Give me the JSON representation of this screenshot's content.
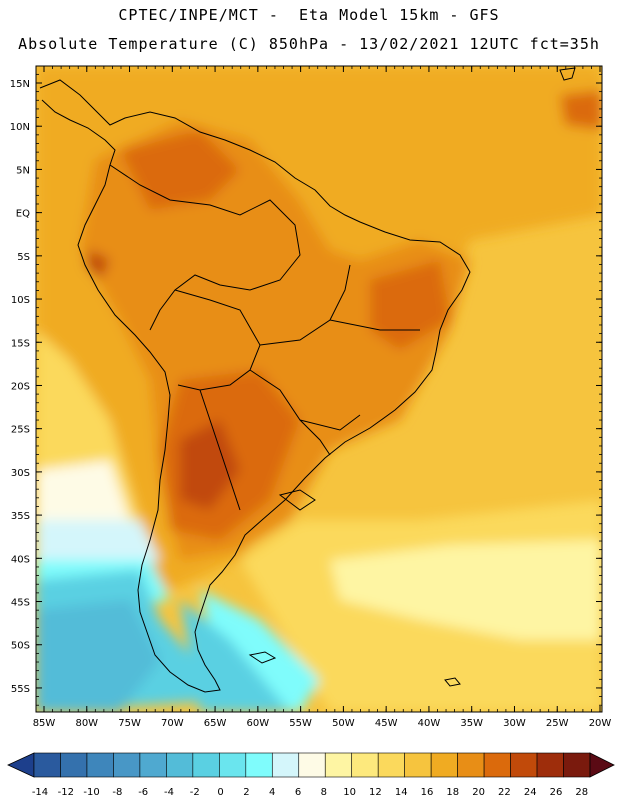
{
  "header": {
    "line1": "CPTEC/INPE/MCT -  Eta Model 15km - GFS",
    "line2": "Absolute Temperature (C) 850hPa - 13/02/2021 12UTC fct=35h"
  },
  "map": {
    "lat_labels": [
      "15N",
      "10N",
      "5N",
      "EQ",
      "5S",
      "10S",
      "15S",
      "20S",
      "25S",
      "30S",
      "35S",
      "40S",
      "45S",
      "50S",
      "55S"
    ],
    "lat_values": [
      15,
      10,
      5,
      0,
      -5,
      -10,
      -15,
      -20,
      -25,
      -30,
      -35,
      -40,
      -45,
      -50,
      -55
    ],
    "lon_labels": [
      "85W",
      "80W",
      "75W",
      "70W",
      "65W",
      "60W",
      "55W",
      "50W",
      "45W",
      "40W",
      "35W",
      "30W",
      "25W",
      "20W"
    ],
    "lon_values": [
      -85,
      -80,
      -75,
      -70,
      -65,
      -60,
      -55,
      -50,
      -45,
      -40,
      -35,
      -30,
      -25,
      -20
    ]
  },
  "colorbar": {
    "labels": [
      "-14",
      "-12",
      "-10",
      "-8",
      "-6",
      "-4",
      "-2",
      "0",
      "2",
      "4",
      "6",
      "8",
      "10",
      "12",
      "14",
      "16",
      "18",
      "20",
      "22",
      "24",
      "26",
      "28"
    ],
    "colors": [
      "#1d3f8c",
      "#2a5a9e",
      "#3471ad",
      "#3e86bb",
      "#4897c6",
      "#4fa9d0",
      "#53bcd8",
      "#5ad0e2",
      "#6ae5ee",
      "#7ffcfc",
      "#d4f6fb",
      "#fefbe6",
      "#fef5a3",
      "#fde97d",
      "#fbd95c",
      "#f6c43e",
      "#f0ab22",
      "#e88e16",
      "#db6a0c",
      "#c14a0a",
      "#9e2d0b",
      "#7a1a0d",
      "#5a0a14"
    ]
  }
}
